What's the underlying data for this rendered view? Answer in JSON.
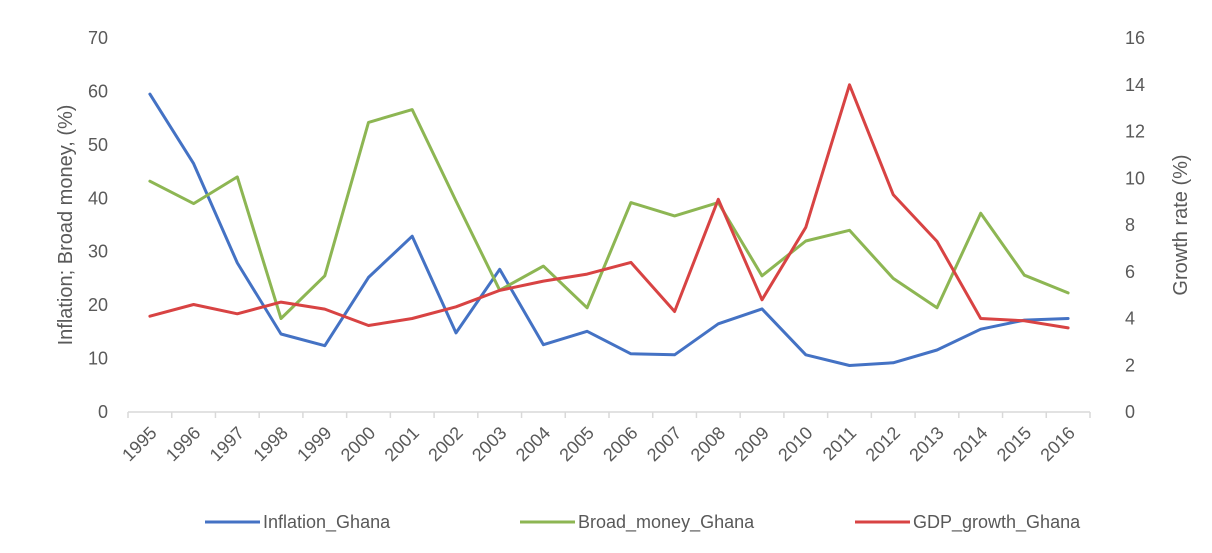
{
  "chart_data": {
    "type": "line",
    "x": [
      "1995",
      "1996",
      "1997",
      "1998",
      "1999",
      "2000",
      "2001",
      "2002",
      "2003",
      "2004",
      "2005",
      "2006",
      "2007",
      "2008",
      "2009",
      "2010",
      "2011",
      "2012",
      "2013",
      "2014",
      "2015",
      "2016"
    ],
    "series": [
      {
        "name": "Inflation_Ghana",
        "axis": "left",
        "color": "#4472C4",
        "values": [
          59.5,
          46.5,
          27.9,
          14.6,
          12.4,
          25.2,
          32.9,
          14.8,
          26.7,
          12.6,
          15.1,
          10.9,
          10.7,
          16.5,
          19.3,
          10.7,
          8.7,
          9.2,
          11.6,
          15.5,
          17.2,
          17.5
        ]
      },
      {
        "name": "Broad_money_Ghana",
        "axis": "left",
        "color": "#8DB653",
        "values": [
          43.2,
          39.0,
          44.0,
          17.5,
          25.5,
          54.2,
          56.6,
          39.5,
          22.8,
          27.3,
          19.5,
          39.2,
          36.7,
          39.2,
          25.5,
          32.0,
          34.0,
          25.0,
          19.5,
          37.2,
          25.6,
          22.3
        ]
      },
      {
        "name": "GDP_growth_Ghana",
        "axis": "right",
        "color": "#D84343",
        "values": [
          4.1,
          4.6,
          4.2,
          4.7,
          4.4,
          3.7,
          4.0,
          4.5,
          5.2,
          5.6,
          5.9,
          6.4,
          4.3,
          9.1,
          4.8,
          7.9,
          14.0,
          9.3,
          7.3,
          4.0,
          3.9,
          3.6
        ]
      }
    ],
    "ylabel": "Inflation; Broad money, (%)",
    "y2label": "Growth rate (%)",
    "ylim": [
      0,
      70
    ],
    "yticks": [
      0,
      10,
      20,
      30,
      40,
      50,
      60,
      70
    ],
    "y2lim": [
      0,
      16
    ],
    "y2ticks": [
      0,
      2,
      4,
      6,
      8,
      10,
      12,
      14,
      16
    ],
    "grid": false,
    "legend": "bottom"
  }
}
